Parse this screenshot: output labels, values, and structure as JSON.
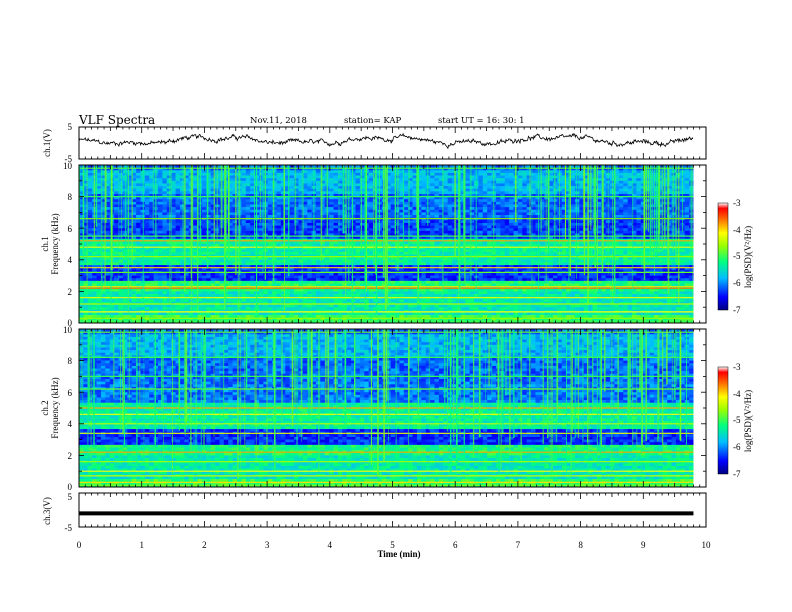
{
  "header": {
    "title": "VLF Spectra",
    "date": "Nov.11, 2018",
    "station": "station= KAP",
    "start": "start  UT =   16: 30: 1"
  },
  "chart_data": [
    {
      "type": "line",
      "name": "ch1-voltage",
      "ylabel": "ch.1(V)",
      "ylim": [
        -5,
        5
      ],
      "yticks": [
        "5",
        "-5"
      ],
      "xlim": [
        0,
        10
      ],
      "trace": "noisy waveform oscillating around ~0 to +2 V across 0-9.8 min"
    },
    {
      "type": "heatmap",
      "name": "ch1-spectrogram",
      "ylabel_top": "ch.1",
      "ylabel": "Frequency (kHz)",
      "ylim": [
        0,
        10
      ],
      "yticks": [
        "0",
        "2",
        "4",
        "6",
        "8",
        "10"
      ],
      "xlim": [
        0,
        9.8
      ],
      "colorbar": {
        "label": "log(PSD)(V²/Hz)",
        "range": [
          -7,
          -3
        ],
        "ticks": [
          "-3",
          "-4",
          "-5",
          "-6",
          "-7"
        ]
      }
    },
    {
      "type": "heatmap",
      "name": "ch2-spectrogram",
      "ylabel_top": "ch.2",
      "ylabel": "Frequency (kHz)",
      "ylim": [
        0,
        10
      ],
      "yticks": [
        "0",
        "2",
        "4",
        "6",
        "8",
        "10"
      ],
      "xlim": [
        0,
        9.8
      ],
      "colorbar": {
        "label": "log(PSD)(V²/Hz)",
        "range": [
          -7,
          -3
        ],
        "ticks": [
          "-3",
          "-4",
          "-5",
          "-6",
          "-7"
        ]
      }
    },
    {
      "type": "line",
      "name": "ch3-voltage",
      "ylabel": "ch.3(V)",
      "ylim": [
        -5,
        5
      ],
      "yticks": [
        "5",
        "-5"
      ],
      "xlim": [
        0,
        10
      ],
      "trace": "flat thick line at about -1 V"
    }
  ],
  "xaxis": {
    "label": "Time (min)",
    "ticks": [
      "0",
      "1",
      "2",
      "3",
      "4",
      "5",
      "6",
      "7",
      "8",
      "9",
      "10"
    ]
  },
  "colors": {
    "axis": "#000000",
    "background": "#ffffff"
  }
}
